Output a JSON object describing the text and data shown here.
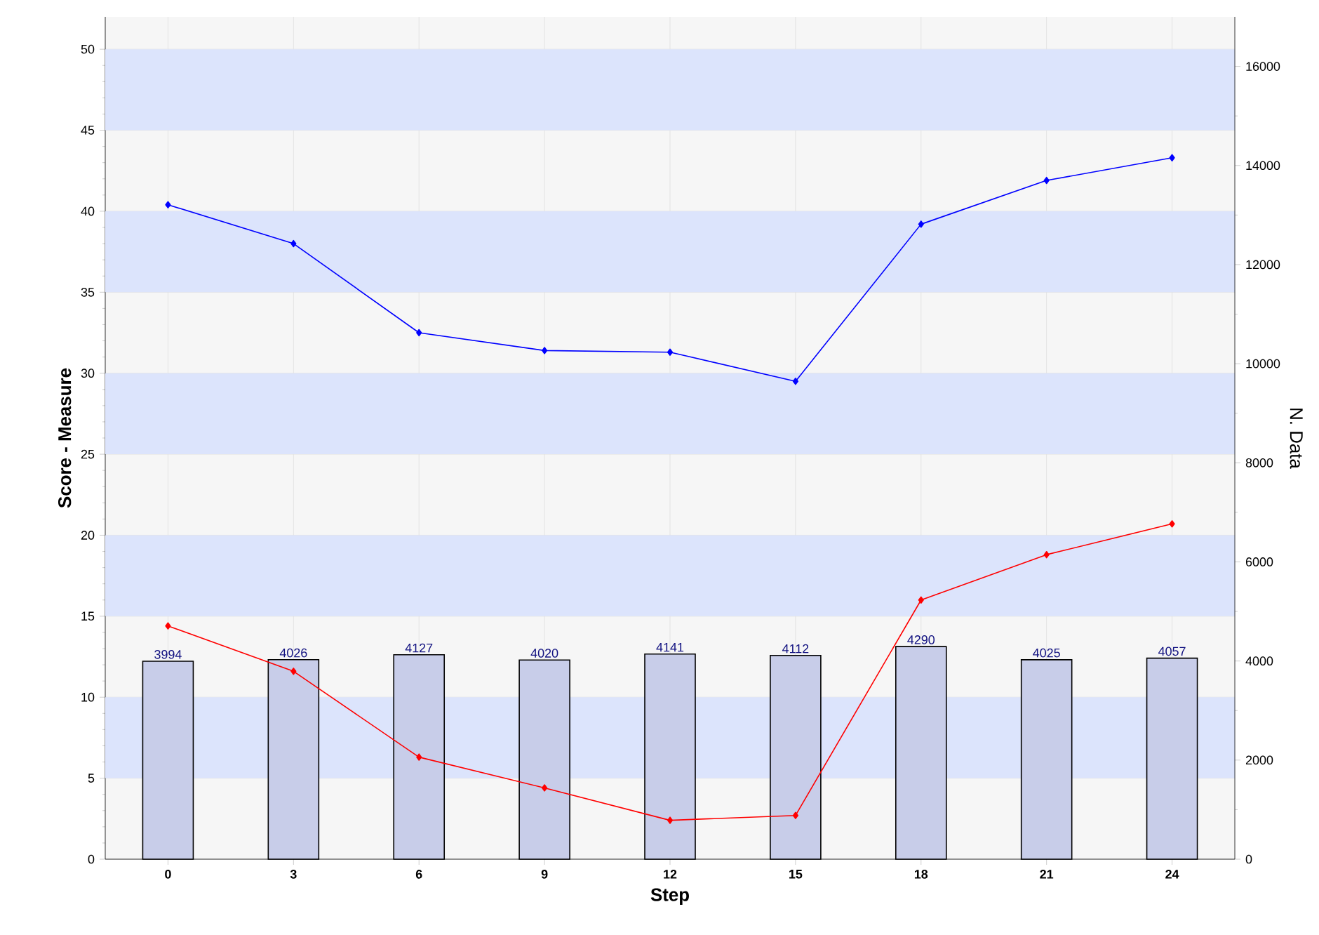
{
  "chart_data": {
    "type": "line",
    "xlabel": "Step",
    "ylabel": "Score - Measure",
    "y2label": "N. Data",
    "categories": [
      "0",
      "3",
      "6",
      "9",
      "12",
      "15",
      "18",
      "21",
      "24"
    ],
    "series": [
      {
        "type": "bar",
        "axis": "y2",
        "color": "#c8cde9",
        "values": [
          3994,
          4026,
          4127,
          4020,
          4141,
          4112,
          4290,
          4025,
          4057
        ],
        "data_labels": true
      },
      {
        "color": "#0000ff",
        "marker": "diamond",
        "values": [
          40.4,
          38.0,
          32.5,
          31.4,
          31.3,
          29.5,
          39.2,
          41.9,
          43.3
        ]
      },
      {
        "color": "#ff0000",
        "marker": "diamond",
        "values": [
          14.4,
          11.6,
          6.3,
          4.4,
          2.4,
          2.7,
          16.0,
          18.8,
          20.7
        ]
      }
    ],
    "ylim": [
      0,
      52
    ],
    "yticks": [
      0,
      5,
      10,
      15,
      20,
      25,
      30,
      35,
      40,
      45,
      50
    ],
    "y2lim": [
      0,
      17000
    ],
    "y2ticks": [
      0,
      2000,
      4000,
      6000,
      8000,
      10000,
      12000,
      14000,
      16000
    ],
    "bands": [
      {
        "axis": "y",
        "from": 5,
        "to": 10,
        "color": "#dce4fc"
      },
      {
        "axis": "y",
        "from": 15,
        "to": 20,
        "color": "#dce4fc"
      },
      {
        "axis": "y",
        "from": 25,
        "to": 30,
        "color": "#dce4fc"
      },
      {
        "axis": "y",
        "from": 35,
        "to": 40,
        "color": "#dce4fc"
      },
      {
        "axis": "y",
        "from": 45,
        "to": 50,
        "color": "#dce4fc"
      }
    ],
    "grid": true
  }
}
